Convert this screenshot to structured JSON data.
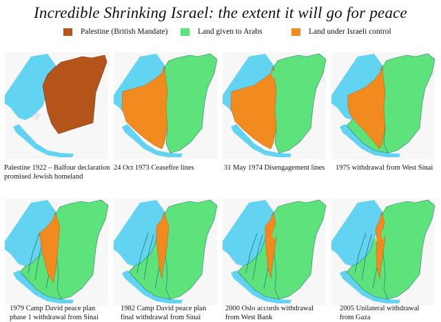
{
  "title": "Incredible Shrinking Israel: the extent it will go for peace",
  "legend": [
    {
      "label": "Palestine (British Mandate)",
      "color": "#b5541a"
    },
    {
      "label": "Land given to Arabs",
      "color": "#5ee27c"
    },
    {
      "label": "Land under Israeli control",
      "color": "#f18a1f"
    }
  ],
  "colors": {
    "sea": "#62d3f0",
    "mandate": "#b5541a",
    "arab": "#5ee27c",
    "israel": "#f18a1f",
    "border": "#2a7a6a",
    "background": "#f7f7f7"
  },
  "maps": [
    {
      "caption": [
        "Palestine 1922 – Balfour declaration",
        "promised Jewish homeland"
      ],
      "stage": "mandate"
    },
    {
      "caption": [
        "24 Oct 1973 Ceasefire lines"
      ],
      "stage": "ceasefire"
    },
    {
      "caption": [
        "31 May 1974 Disengagement  lines"
      ],
      "stage": "disengagement"
    },
    {
      "caption": [
        "1975 withdrawal from West Sinai"
      ],
      "stage": "westsinai"
    },
    {
      "caption": [
        "1979 Camp David peace plan",
        "phase 1 withdrawal from Sinai"
      ],
      "stage": "campdavid1"
    },
    {
      "caption": [
        "1982 Camp David peace plan",
        "final withdrawal from Sinai"
      ],
      "stage": "campdavid2"
    },
    {
      "caption": [
        "2000 Oslo accords withdrawal",
        "from West Bank"
      ],
      "stage": "oslo"
    },
    {
      "caption": [
        "2005 Unilateral withdrawal",
        "from Gaza"
      ],
      "stage": "gaza"
    }
  ]
}
